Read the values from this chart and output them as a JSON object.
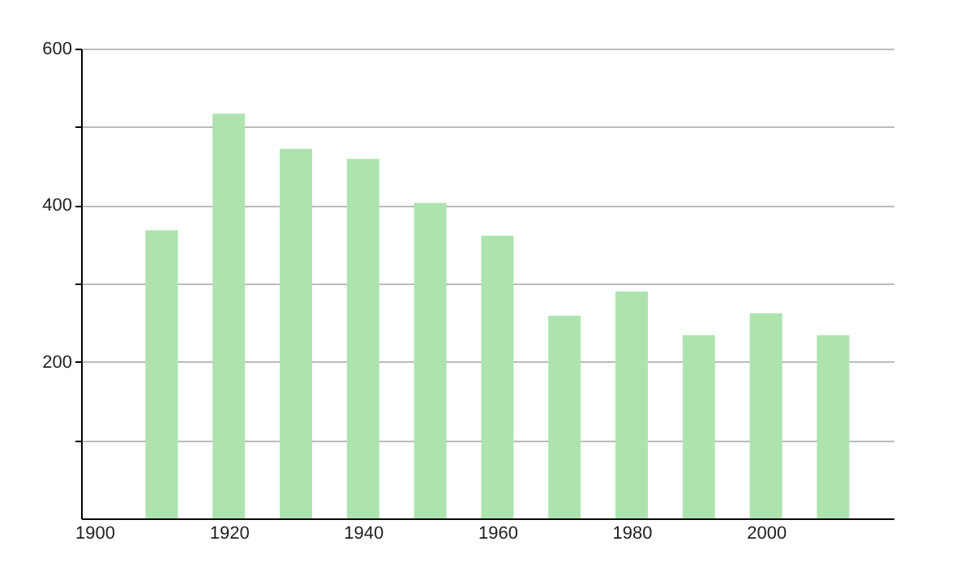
{
  "chart_data": {
    "type": "bar",
    "x": [
      1910,
      1920,
      1930,
      1940,
      1950,
      1960,
      1970,
      1980,
      1990,
      2000,
      2010
    ],
    "values": [
      368,
      517,
      472,
      459,
      403,
      361,
      259,
      290,
      234,
      262,
      234
    ],
    "color": "#ade4ae",
    "xlim": [
      1898,
      2019
    ],
    "xticks": [
      1900,
      1920,
      1940,
      1960,
      1980,
      2000
    ],
    "ylim": [
      0,
      600
    ],
    "yticks": [
      {
        "value": 100,
        "label": null
      },
      200,
      {
        "value": 300,
        "label": null
      },
      400,
      {
        "value": 500,
        "label": null
      },
      600
    ],
    "grid": "y"
  }
}
